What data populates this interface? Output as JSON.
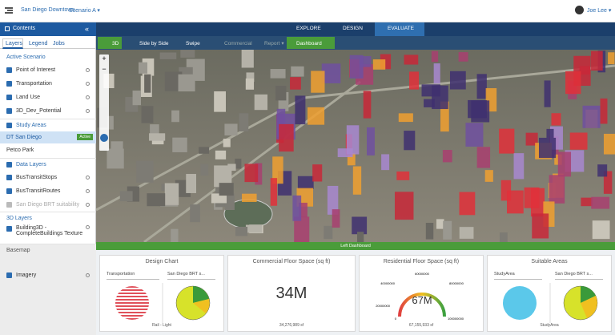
{
  "header": {
    "app_title": "San Diego Downtown",
    "scenario": "Scenario A ▾",
    "user": "Joe Lee ▾"
  },
  "tabs": [
    "EXPLORE",
    "DESIGN",
    "EVALUATE"
  ],
  "toolbar": [
    "3D",
    "Side by Side",
    "Swipe",
    "Commercial",
    "Report ▾",
    "Dashboard"
  ],
  "contents": {
    "title": "Contents",
    "tabs": [
      "Layers",
      "Legend",
      "Jobs"
    ],
    "active_scenario": {
      "title": "Active Scenario",
      "layers": [
        "Point of Interest",
        "Transportation",
        "Land Use",
        "3D_Dev_Potential"
      ]
    },
    "study_areas": {
      "title": "Study Areas",
      "items": [
        "DT San Diego",
        "Petco Park"
      ],
      "badge": "Active"
    },
    "data_layers": {
      "title": "Data Layers",
      "layers": [
        "BusTransitStops",
        "BusTransitRoutes",
        "San Diego BRT suitability"
      ]
    },
    "layers_3d": {
      "title": "3D Layers",
      "layers": [
        "Building3D - CompleteBuildings Texture"
      ]
    },
    "basemap": {
      "title": "Basemap",
      "layers": [
        "Imagery"
      ]
    }
  },
  "dashboard": {
    "title": "Left Dashboard",
    "cards": [
      {
        "title": "Design Chart",
        "dropdowns": [
          "Transportation",
          "San Diego BRT s..."
        ],
        "caption": "Rail - Light"
      },
      {
        "title": "Commercial Floor Space (sq ft)",
        "value": "34M",
        "caption": "34,276,989 sf"
      },
      {
        "title": "Residential Floor Space (sq ft)",
        "value": "67M",
        "caption": "67,155,933 sf",
        "gauge_labels": [
          "20000000",
          "40000000",
          "60000000",
          "80000000",
          "100000000",
          "0"
        ]
      },
      {
        "title": "Suitable Areas",
        "dropdowns": [
          "StudyArea",
          "San Diego BRT s..."
        ],
        "caption": "StudyArea"
      }
    ]
  }
}
